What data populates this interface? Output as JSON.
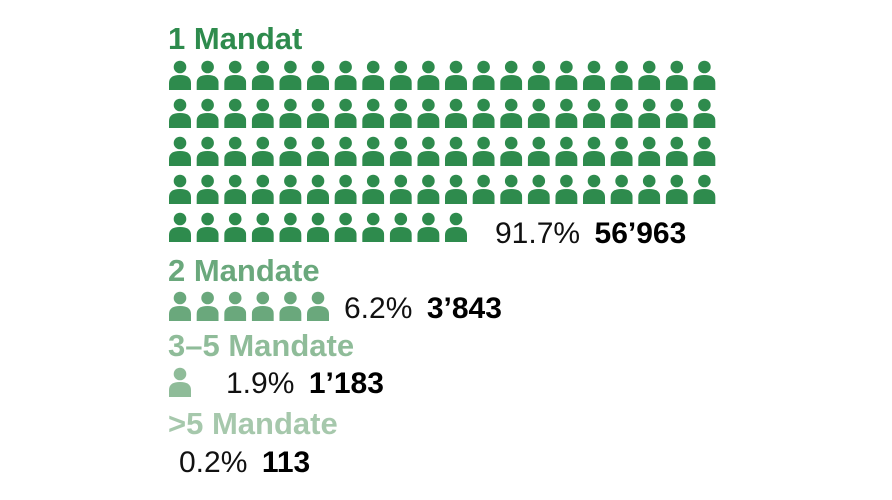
{
  "chart_data": {
    "type": "pictogram",
    "categories": [
      "1 Mandat",
      "2 Mandate",
      "3–5 Mandate",
      ">5 Mandate"
    ],
    "percent_labels": [
      "91.7%",
      "6.2%",
      "1.9%",
      "0.2%"
    ],
    "count_labels": [
      "56’963",
      "3’843",
      "1’183",
      "113"
    ],
    "values": [
      56963,
      3843,
      1183,
      113
    ],
    "percentages": [
      91.7,
      6.2,
      1.9,
      0.2
    ],
    "icon_fill": [
      91.7,
      6.2,
      1.9,
      0.2
    ],
    "icons_per_row": 20,
    "icon": "person-icon",
    "colors": [
      "#2e8b4d",
      "#6aa87c",
      "#8fbc99",
      "#a6c8ac"
    ]
  }
}
